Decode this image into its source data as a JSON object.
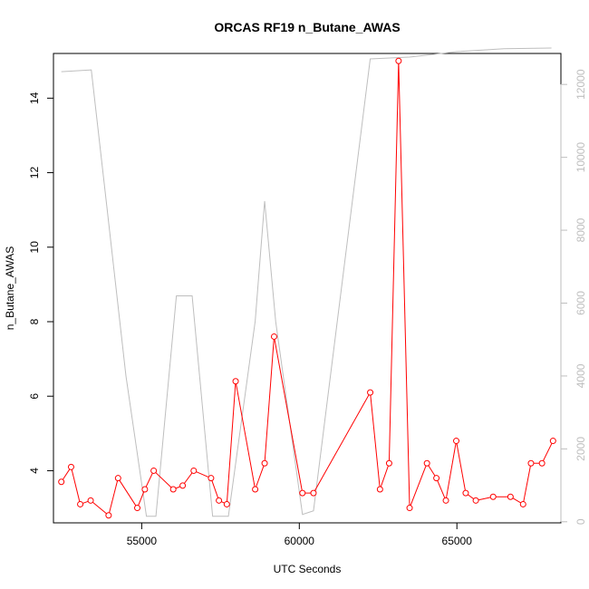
{
  "chart_data": {
    "type": "line",
    "title": "ORCAS RF19 n_Butane_AWAS",
    "xlabel": "UTC Seconds",
    "ylabel": "n_Butane_AWAS",
    "xlim": [
      52200,
      68300
    ],
    "ylim": [
      2.6,
      15.2
    ],
    "y2lim": [
      -30,
      12850
    ],
    "x_ticks": [
      55000,
      60000,
      65000
    ],
    "y_ticks": [
      4,
      6,
      8,
      10,
      12,
      14
    ],
    "y2_ticks": [
      0,
      2000,
      4000,
      6000,
      8000,
      10000,
      12000
    ],
    "colors": {
      "series": "#ff0000",
      "secondary": "#bebebe",
      "axis": "#000000"
    },
    "series": [
      {
        "axis": "left",
        "style": "points-and-lines",
        "x": [
          52450,
          52760,
          53050,
          53380,
          53950,
          54250,
          54860,
          55100,
          55380,
          56000,
          56300,
          56650,
          57200,
          57450,
          57700,
          57980,
          58600,
          58900,
          59200,
          60100,
          60450,
          62250,
          62560,
          62850,
          63150,
          63500,
          64050,
          64350,
          64650,
          64980,
          65280,
          65600,
          66150,
          66700,
          67100,
          67350,
          67700,
          68050
        ],
        "y": [
          3.7,
          4.1,
          3.1,
          3.2,
          2.8,
          3.8,
          3.0,
          3.5,
          4.0,
          3.5,
          3.6,
          4.0,
          3.8,
          3.2,
          3.1,
          6.4,
          3.5,
          4.2,
          7.6,
          3.4,
          3.4,
          6.1,
          3.5,
          4.2,
          15.0,
          3.0,
          4.2,
          3.8,
          3.2,
          4.8,
          3.4,
          3.2,
          3.3,
          3.3,
          3.1,
          4.2,
          4.2,
          4.8
        ]
      },
      {
        "axis": "right",
        "style": "line",
        "x": [
          52450,
          53400,
          53900,
          54500,
          55150,
          55450,
          56100,
          56300,
          56600,
          57250,
          57450,
          57750,
          58600,
          58900,
          59250,
          60100,
          60450,
          62250,
          63500,
          65000,
          66500,
          68000
        ],
        "y": [
          12350,
          12400,
          8600,
          4000,
          150,
          150,
          6200,
          6200,
          6200,
          150,
          150,
          150,
          5500,
          8800,
          5500,
          200,
          300,
          12700,
          12750,
          12900,
          12980,
          13000
        ]
      }
    ]
  }
}
